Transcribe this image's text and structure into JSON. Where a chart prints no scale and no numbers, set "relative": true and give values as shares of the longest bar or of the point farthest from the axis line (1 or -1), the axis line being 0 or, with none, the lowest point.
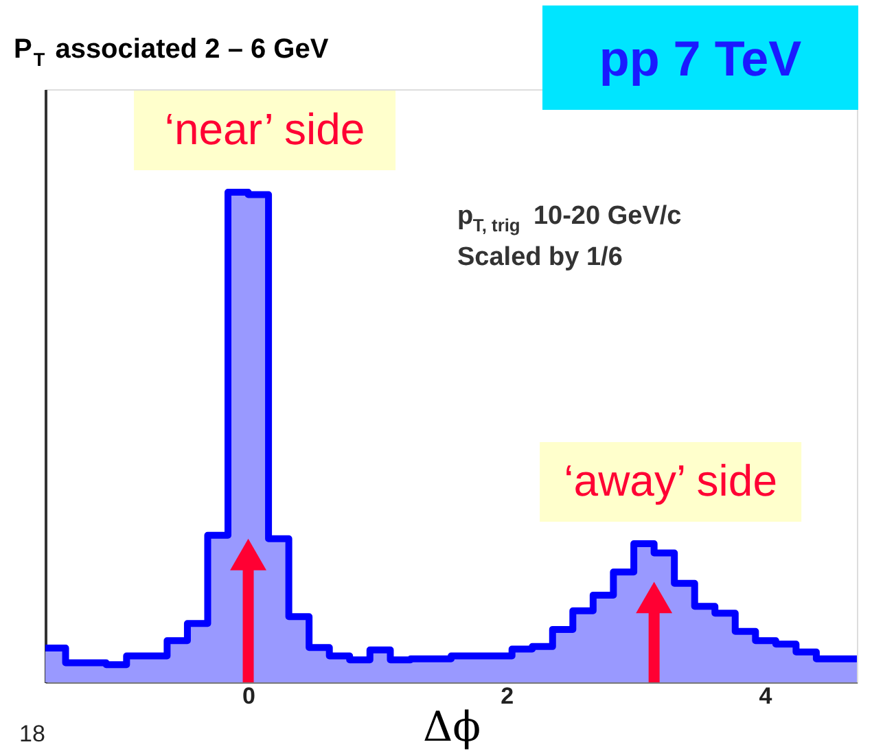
{
  "chart_data": {
    "type": "area",
    "title": "P$_{T}$ associated 2 – 6 GeV",
    "subtitle": "pp 7 TeV",
    "xlabel": "Δϕ",
    "relative": true,
    "x": [
      -1.571,
      -1.414,
      -1.257,
      -1.1,
      -0.942,
      -0.785,
      -0.628,
      -0.471,
      -0.314,
      -0.157,
      0,
      0.157,
      0.314,
      0.471,
      0.628,
      0.785,
      0.942,
      1.1,
      1.257,
      1.414,
      1.571,
      1.728,
      1.885,
      2.042,
      2.199,
      2.356,
      2.513,
      2.67,
      2.827,
      2.985,
      3.142,
      3.299,
      3.456,
      3.613,
      3.77,
      3.927,
      4.084,
      4.241,
      4.398,
      4.555,
      4.712
    ],
    "series": [
      {
        "color": "#9999ff",
        "values": [
          0.07,
          0.04,
          0.04,
          0.036,
          0.054,
          0.054,
          0.085,
          0.12,
          0.3,
          1.0,
          0.995,
          0.293,
          0.134,
          0.071,
          0.054,
          0.046,
          0.066,
          0.046,
          0.048,
          0.048,
          0.054,
          0.054,
          0.054,
          0.068,
          0.073,
          0.108,
          0.146,
          0.178,
          0.225,
          0.283,
          0.264,
          0.202,
          0.155,
          0.141,
          0.104,
          0.085,
          0.078,
          0.062,
          0.048,
          0.048,
          0.048
        ]
      },
      {
        "type": "step",
        "color": "#0000ff",
        "values": [
          0.07,
          0.04,
          0.04,
          0.036,
          0.054,
          0.054,
          0.085,
          0.12,
          0.3,
          1.0,
          0.995,
          0.293,
          0.134,
          0.071,
          0.054,
          0.046,
          0.066,
          0.046,
          0.048,
          0.048,
          0.054,
          0.054,
          0.054,
          0.068,
          0.073,
          0.108,
          0.146,
          0.178,
          0.225,
          0.283,
          0.264,
          0.202,
          0.155,
          0.141,
          0.104,
          0.085,
          0.078,
          0.062,
          0.048,
          0.048,
          0.048
        ]
      }
    ],
    "xlim": [
      -1.571,
      4.712
    ],
    "xticks": [
      0,
      2,
      4
    ],
    "annotations": [
      {
        "text": "‘near’ side",
        "x": 0,
        "y": 1.0
      },
      {
        "text": "‘away’ side",
        "x": 3.142,
        "y": 0.283
      },
      "p$_{T, trig}$ 10-20 GeV/c",
      "Scaled by 1/6",
      "18"
    ]
  }
}
